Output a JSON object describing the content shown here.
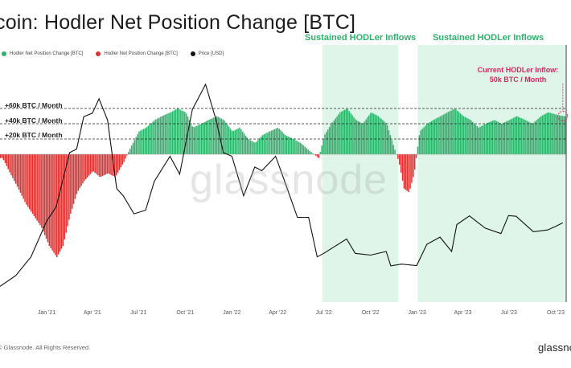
{
  "title": "coin: Hodler Net Position Change [BTC]",
  "legend": [
    {
      "label": "Hodler Net Position Change [BTC]",
      "color": "#2db36b"
    },
    {
      "label": "Hodler Net Position Change [BTC]",
      "color": "#e03030"
    },
    {
      "label": "Price [USD]",
      "color": "#111111"
    }
  ],
  "band_titles": [
    "Sustained HODLer Inflows",
    "Sustained HODLer Inflows"
  ],
  "hline_labels": [
    "+60k BTC / Month",
    "+40k BTC / Month",
    "+20k BTC / Month"
  ],
  "current_label": [
    "Current HODLer Inflow:",
    "50k BTC / Month"
  ],
  "watermark": "glassnode",
  "copyright": "© Glassnode. All Rights Reserved.",
  "brand": "glassnode",
  "colors": {
    "inflow": "#2db36b",
    "outflow": "#e03030",
    "price": "#111111",
    "band": "#dff5e9",
    "accent": "#e0245e"
  },
  "chart_data": {
    "type": "bar",
    "x_axis": "date",
    "x_range": [
      "2020-10-01",
      "2023-10-20"
    ],
    "x_ticks": [
      "Jan '21",
      "Apr '21",
      "Jul '21",
      "Oct '21",
      "Jan '22",
      "Apr '22",
      "Jul '22",
      "Oct '22",
      "Jan '23",
      "Apr '23",
      "Jul '23",
      "Oct '23"
    ],
    "reference_lines_btc": [
      60000,
      40000,
      20000
    ],
    "highlight_periods": [
      {
        "label": "Sustained HODLer Inflows",
        "start": "2022-06-28",
        "end": "2022-11-25"
      },
      {
        "label": "Sustained HODLer Inflows",
        "start": "2023-01-02",
        "end": "2023-10-20"
      }
    ],
    "series": [
      {
        "name": "Hodler Net Position Change [BTC]",
        "unit": "BTC / month",
        "points": [
          [
            "2020-10-05",
            -5000
          ],
          [
            "2020-10-20",
            -25000
          ],
          [
            "2020-11-05",
            -45000
          ],
          [
            "2020-11-20",
            -65000
          ],
          [
            "2020-12-05",
            -80000
          ],
          [
            "2020-12-20",
            -95000
          ],
          [
            "2021-01-05",
            -120000
          ],
          [
            "2021-01-20",
            -135000
          ],
          [
            "2021-02-01",
            -120000
          ],
          [
            "2021-02-15",
            -80000
          ],
          [
            "2021-03-01",
            -50000
          ],
          [
            "2021-03-15",
            -35000
          ],
          [
            "2021-04-01",
            -22000
          ],
          [
            "2021-04-15",
            -30000
          ],
          [
            "2021-05-01",
            -25000
          ],
          [
            "2021-05-15",
            -30000
          ],
          [
            "2021-06-01",
            -10000
          ],
          [
            "2021-06-15",
            10000
          ],
          [
            "2021-07-01",
            30000
          ],
          [
            "2021-07-15",
            35000
          ],
          [
            "2021-08-01",
            45000
          ],
          [
            "2021-08-15",
            50000
          ],
          [
            "2021-09-01",
            55000
          ],
          [
            "2021-09-15",
            60000
          ],
          [
            "2021-10-01",
            55000
          ],
          [
            "2021-10-15",
            35000
          ],
          [
            "2021-11-01",
            40000
          ],
          [
            "2021-11-15",
            45000
          ],
          [
            "2021-12-01",
            50000
          ],
          [
            "2021-12-15",
            45000
          ],
          [
            "2022-01-01",
            30000
          ],
          [
            "2022-01-15",
            35000
          ],
          [
            "2022-02-01",
            20000
          ],
          [
            "2022-02-15",
            15000
          ],
          [
            "2022-03-01",
            25000
          ],
          [
            "2022-03-15",
            30000
          ],
          [
            "2022-04-01",
            35000
          ],
          [
            "2022-04-15",
            25000
          ],
          [
            "2022-05-01",
            20000
          ],
          [
            "2022-05-15",
            15000
          ],
          [
            "2022-06-01",
            5000
          ],
          [
            "2022-06-20",
            -5000
          ],
          [
            "2022-07-01",
            25000
          ],
          [
            "2022-07-15",
            40000
          ],
          [
            "2022-08-01",
            55000
          ],
          [
            "2022-08-15",
            60000
          ],
          [
            "2022-09-01",
            45000
          ],
          [
            "2022-09-15",
            40000
          ],
          [
            "2022-10-01",
            55000
          ],
          [
            "2022-10-15",
            50000
          ],
          [
            "2022-11-01",
            40000
          ],
          [
            "2022-11-15",
            10000
          ],
          [
            "2022-11-25",
            -10000
          ],
          [
            "2022-12-05",
            -45000
          ],
          [
            "2022-12-15",
            -50000
          ],
          [
            "2022-12-25",
            -25000
          ],
          [
            "2023-01-05",
            30000
          ],
          [
            "2023-01-20",
            40000
          ],
          [
            "2023-02-01",
            45000
          ],
          [
            "2023-02-15",
            50000
          ],
          [
            "2023-03-01",
            55000
          ],
          [
            "2023-03-15",
            60000
          ],
          [
            "2023-04-01",
            50000
          ],
          [
            "2023-04-15",
            45000
          ],
          [
            "2023-05-01",
            35000
          ],
          [
            "2023-05-15",
            40000
          ],
          [
            "2023-06-01",
            45000
          ],
          [
            "2023-06-15",
            40000
          ],
          [
            "2023-07-01",
            45000
          ],
          [
            "2023-07-15",
            50000
          ],
          [
            "2023-08-01",
            45000
          ],
          [
            "2023-08-15",
            40000
          ],
          [
            "2023-09-01",
            50000
          ],
          [
            "2023-09-15",
            55000
          ],
          [
            "2023-10-01",
            52000
          ],
          [
            "2023-10-15",
            50000
          ]
        ]
      },
      {
        "name": "Price [USD]",
        "points": [
          [
            "2020-10-01",
            10800
          ],
          [
            "2020-11-01",
            13800
          ],
          [
            "2020-12-01",
            19000
          ],
          [
            "2021-01-01",
            29000
          ],
          [
            "2021-01-20",
            33000
          ],
          [
            "2021-02-15",
            48000
          ],
          [
            "2021-03-01",
            49000
          ],
          [
            "2021-03-15",
            58000
          ],
          [
            "2021-04-01",
            59000
          ],
          [
            "2021-04-14",
            63000
          ],
          [
            "2021-05-01",
            57000
          ],
          [
            "2021-05-19",
            38000
          ],
          [
            "2021-06-01",
            36000
          ],
          [
            "2021-06-22",
            31000
          ],
          [
            "2021-07-15",
            32000
          ],
          [
            "2021-08-01",
            40000
          ],
          [
            "2021-09-01",
            47000
          ],
          [
            "2021-09-20",
            42000
          ],
          [
            "2021-10-15",
            60000
          ],
          [
            "2021-11-10",
            67000
          ],
          [
            "2021-12-01",
            57000
          ],
          [
            "2021-12-15",
            48000
          ],
          [
            "2022-01-01",
            47000
          ],
          [
            "2022-01-24",
            36000
          ],
          [
            "2022-02-15",
            44000
          ],
          [
            "2022-03-01",
            43000
          ],
          [
            "2022-03-28",
            47000
          ],
          [
            "2022-04-15",
            40000
          ],
          [
            "2022-05-10",
            30000
          ],
          [
            "2022-06-01",
            30000
          ],
          [
            "2022-06-18",
            19000
          ],
          [
            "2022-07-01",
            20000
          ],
          [
            "2022-08-15",
            24000
          ],
          [
            "2022-09-01",
            20000
          ],
          [
            "2022-10-01",
            19500
          ],
          [
            "2022-11-01",
            20500
          ],
          [
            "2022-11-10",
            16500
          ],
          [
            "2022-12-01",
            17000
          ],
          [
            "2022-12-31",
            16600
          ],
          [
            "2023-01-20",
            22500
          ],
          [
            "2023-02-15",
            24500
          ],
          [
            "2023-03-10",
            20500
          ],
          [
            "2023-03-20",
            28000
          ],
          [
            "2023-04-14",
            30400
          ],
          [
            "2023-05-15",
            27000
          ],
          [
            "2023-06-15",
            25500
          ],
          [
            "2023-06-30",
            30500
          ],
          [
            "2023-07-15",
            30300
          ],
          [
            "2023-08-18",
            26000
          ],
          [
            "2023-09-15",
            26500
          ],
          [
            "2023-10-01",
            27500
          ],
          [
            "2023-10-15",
            28500
          ]
        ]
      }
    ]
  }
}
